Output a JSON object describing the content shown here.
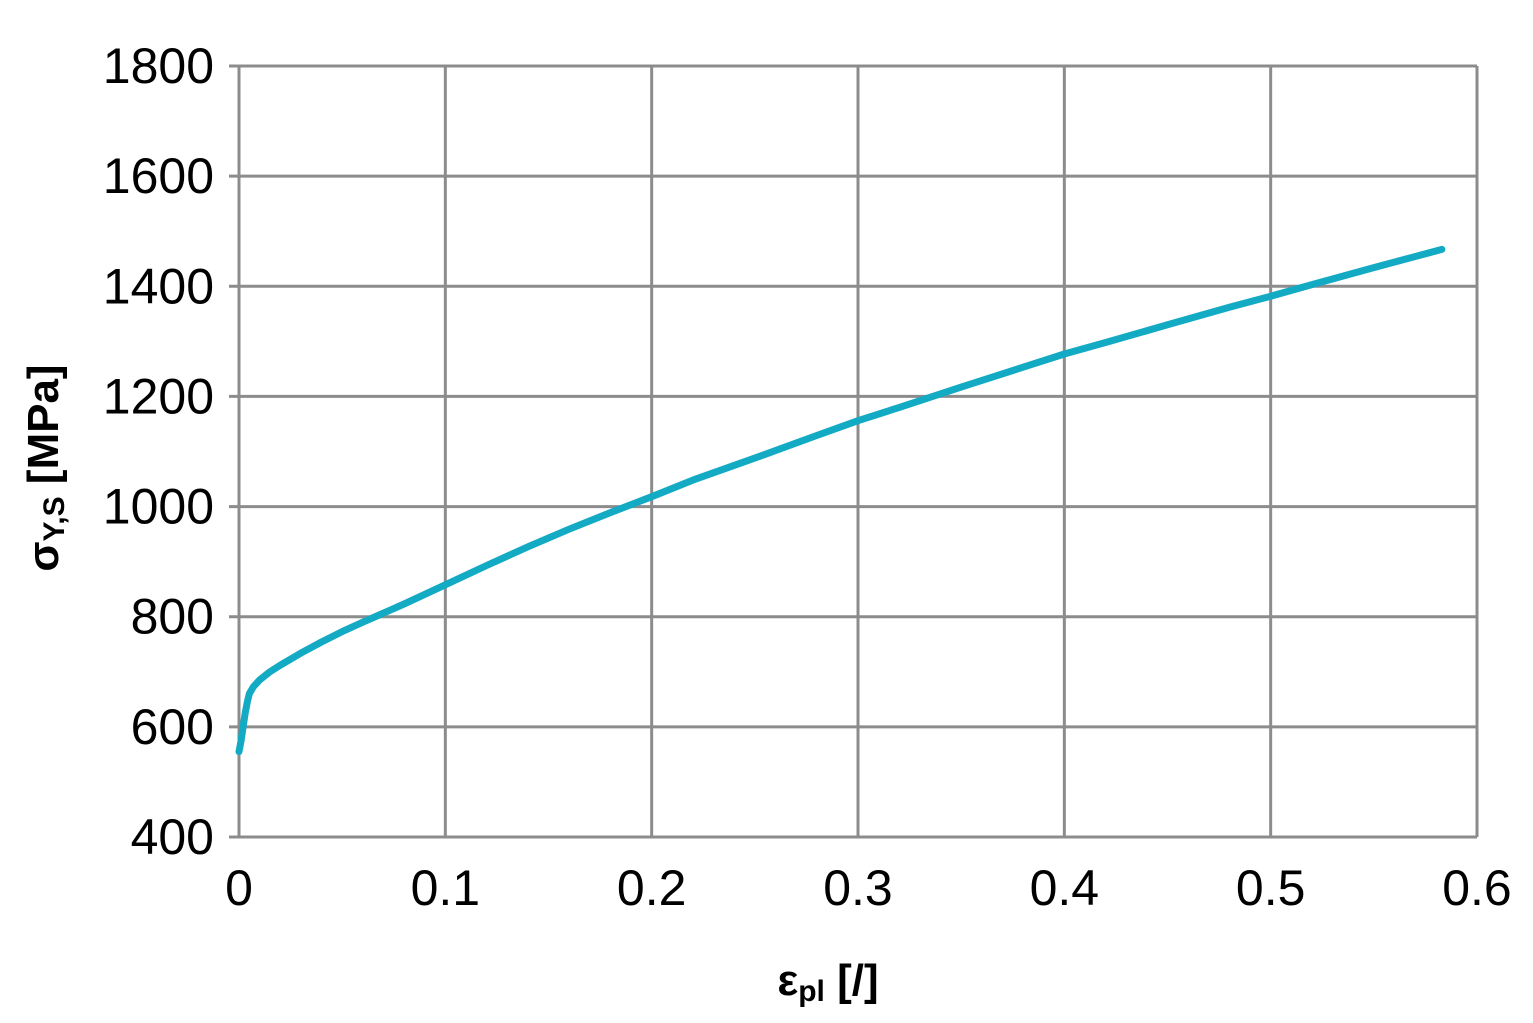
{
  "chart_data": {
    "type": "line",
    "title": "",
    "xlabel": {
      "main": "ε",
      "sub": "pl",
      "unit": " [/]"
    },
    "ylabel": {
      "main": "σ",
      "sub": "Y,S",
      "unit": " [MPa]"
    },
    "xlim": [
      0,
      0.6
    ],
    "ylim": [
      400,
      1800
    ],
    "xticks": [
      0,
      0.1,
      0.2,
      0.3,
      0.4,
      0.5,
      0.6
    ],
    "xtick_labels": [
      "0",
      "0.1",
      "0.2",
      "0.3",
      "0.4",
      "0.5",
      "0.6"
    ],
    "yticks": [
      400,
      600,
      800,
      1000,
      1200,
      1400,
      1600,
      1800
    ],
    "ytick_labels": [
      "400",
      "600",
      "800",
      "1000",
      "1200",
      "1400",
      "1600",
      "1800"
    ],
    "grid": true,
    "legend": "none",
    "series": [
      {
        "color": "#13aac4",
        "x": [
          0,
          0.001,
          0.002,
          0.003,
          0.004,
          0.005,
          0.007,
          0.01,
          0.015,
          0.02,
          0.03,
          0.04,
          0.05,
          0.06,
          0.08,
          0.1,
          0.12,
          0.14,
          0.16,
          0.18,
          0.2,
          0.22,
          0.25,
          0.28,
          0.3,
          0.32,
          0.35,
          0.38,
          0.4,
          0.42,
          0.45,
          0.48,
          0.5,
          0.52,
          0.55,
          0.583
        ],
        "y": [
          555,
          575,
          600,
          625,
          645,
          660,
          673,
          685,
          700,
          712,
          734,
          754,
          773,
          790,
          823,
          858,
          893,
          927,
          959,
          989,
          1018,
          1048,
          1088,
          1129,
          1156,
          1180,
          1217,
          1253,
          1277,
          1298,
          1330,
          1362,
          1382,
          1403,
          1434,
          1467
        ]
      }
    ]
  }
}
